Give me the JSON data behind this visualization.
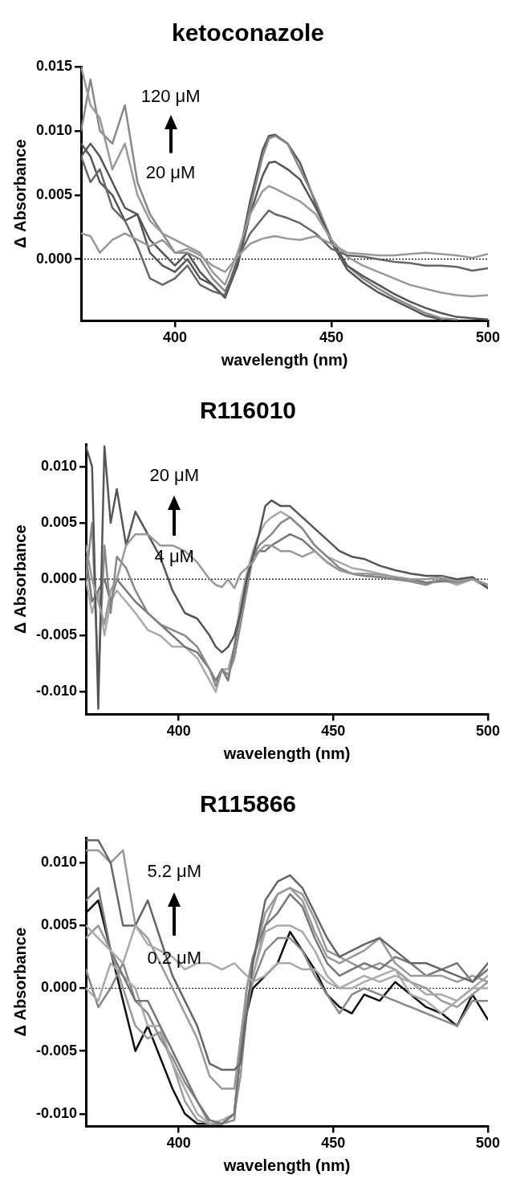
{
  "chart_data": [
    {
      "type": "line",
      "title": "ketoconazole",
      "xlabel": "wavelength (nm)",
      "ylabel": "Δ Absorbance",
      "annotations": [
        "120 μM",
        "20 μM"
      ],
      "xlim": [
        370,
        500
      ],
      "xticks": [
        400,
        450,
        500
      ],
      "ylim": [
        -0.0048,
        0.015
      ],
      "yticks": [
        {
          "value": 0,
          "label": "0.000"
        },
        0.005,
        {
          "value": 0.01,
          "label": "0.010"
        },
        0.015
      ],
      "grid": false,
      "legend": false,
      "marker": "none",
      "line_style": "solid",
      "ref_lines": [
        {
          "axis": "y",
          "value": 0,
          "line_style": "dotted",
          "color": "#000000"
        }
      ],
      "x": [
        370,
        373,
        376,
        380,
        384,
        388,
        392,
        396,
        400,
        404,
        408,
        412,
        416,
        420,
        424,
        428,
        430,
        432,
        436,
        440,
        445,
        450,
        455,
        460,
        465,
        470,
        475,
        480,
        485,
        490,
        495,
        500
      ],
      "series": [
        {
          "color": "#999999",
          "values": [
            0.002,
            0.0018,
            0.0005,
            0.0015,
            0.002,
            0.0015,
            0.001,
            0.0015,
            0.0005,
            0.0008,
            0.0003,
            -0.0005,
            -0.001,
            0.0002,
            0.0012,
            0.0016,
            0.0017,
            0.0018,
            0.0016,
            0.0015,
            0.0018,
            0.0012,
            0.0005,
            0.0004,
            0.0003,
            0.0003,
            0.0004,
            0.0005,
            0.0004,
            0.0003,
            0.0001,
            0.0004
          ]
        },
        {
          "color": "#666666",
          "values": [
            0.008,
            0.006,
            0.007,
            0.004,
            0.003,
            0.001,
            -0.0015,
            -0.002,
            -0.0015,
            -0.0005,
            -0.002,
            -0.0025,
            -0.0028,
            0,
            0.002,
            0.0032,
            0.0038,
            0.0035,
            0.0032,
            0.0028,
            0.002,
            0.0008,
            0.0003,
            0.0002,
            0,
            -0.0002,
            -0.0003,
            -0.0005,
            -0.0005,
            -0.0006,
            -0.0009,
            -0.0007
          ]
        },
        {
          "color": "#999999",
          "values": [
            0.015,
            0.012,
            0.011,
            0.007,
            0.009,
            0.005,
            0.003,
            0.002,
            0.0015,
            0.001,
            0.0005,
            -0.001,
            -0.002,
            0.0005,
            0.0035,
            0.0053,
            0.0057,
            0.0055,
            0.005,
            0.0045,
            0.0035,
            0.0015,
            0.0002,
            -0.0005,
            -0.001,
            -0.0015,
            -0.002,
            -0.0023,
            -0.0026,
            -0.0028,
            -0.0029,
            -0.0028
          ]
        },
        {
          "color": "#555555",
          "values": [
            0.009,
            0.008,
            0.006,
            0.005,
            0.003,
            0.0035,
            0.0005,
            -0.0005,
            -0.001,
            0,
            -0.0015,
            -0.002,
            -0.003,
            -0.0005,
            0.0035,
            0.0065,
            0.0075,
            0.0076,
            0.007,
            0.0062,
            0.004,
            0.0015,
            -0.0005,
            -0.0013,
            -0.002,
            -0.0027,
            -0.0033,
            -0.0038,
            -0.0042,
            -0.0045,
            -0.0046,
            -0.0047
          ]
        },
        {
          "color": "#888888",
          "values": [
            0.01,
            0.014,
            0.01,
            0.009,
            0.012,
            0.006,
            0.0035,
            0.002,
            0.0005,
            0.0005,
            0,
            -0.0015,
            -0.0025,
            -0.0005,
            0.004,
            0.008,
            0.0094,
            0.0096,
            0.009,
            0.007,
            0.0045,
            0.0015,
            -0.0005,
            -0.0015,
            -0.0023,
            -0.003,
            -0.0036,
            -0.0042,
            -0.0046,
            -0.0047,
            null,
            null
          ]
        },
        {
          "color": "#555555",
          "values": [
            0.008,
            0.009,
            0.008,
            0.006,
            0.004,
            0.0035,
            0.0015,
            0.0005,
            -0.0005,
            0.0005,
            -0.001,
            -0.002,
            -0.003,
            -0.0003,
            0.0045,
            0.0085,
            0.0096,
            0.0097,
            0.009,
            0.0075,
            0.0043,
            0.0013,
            -0.0008,
            -0.0018,
            -0.0026,
            -0.0032,
            -0.0038,
            -0.0044,
            -0.0047,
            null,
            null,
            null
          ]
        }
      ]
    },
    {
      "type": "line",
      "title": "R116010",
      "xlabel": "wavelength (nm)",
      "ylabel": "Δ Absorbance",
      "annotations": [
        "20 μM",
        "4 μM"
      ],
      "xlim": [
        370,
        500
      ],
      "xticks": [
        400,
        450,
        500
      ],
      "ylim": [
        -0.012,
        0.012
      ],
      "yticks": [
        {
          "value": -0.01,
          "label": "-0.010"
        },
        -0.005,
        {
          "value": 0,
          "label": "0.000"
        },
        0.005,
        {
          "value": 0.01,
          "label": "0.010"
        }
      ],
      "grid": false,
      "legend": false,
      "marker": "none",
      "line_style": "solid",
      "ref_lines": [
        {
          "axis": "y",
          "value": 0,
          "line_style": "dotted",
          "color": "#000000"
        }
      ],
      "x": [
        370,
        372,
        374,
        376,
        378,
        380,
        383,
        386,
        390,
        394,
        398,
        402,
        406,
        410,
        412,
        414,
        416,
        418,
        420,
        422,
        424,
        426,
        428,
        430,
        433,
        436,
        440,
        444,
        448,
        452,
        456,
        460,
        465,
        470,
        475,
        480,
        485,
        490,
        495,
        500
      ],
      "series": [
        {
          "color": "#999999",
          "values": [
            0.003,
            0,
            -0.002,
            -0.004,
            -0.001,
            0,
            0.003,
            0.004,
            0.004,
            0.003,
            0.003,
            0.0025,
            0.0015,
            0,
            -0.0005,
            -0.0007,
            0,
            -0.0008,
            0.0005,
            0.001,
            0.0015,
            0.0025,
            0.003,
            0.003,
            0.0025,
            0.0025,
            0.002,
            0.0025,
            0.0015,
            0.0008,
            0.0005,
            0.0005,
            0.0004,
            0.0002,
            0,
            0,
            0.0002,
            -0.0002,
            0,
            -0.0005
          ]
        },
        {
          "color": "#555555",
          "values": [
            0.0118,
            0.01,
            -0.0115,
            0.0118,
            0.005,
            0.008,
            0.003,
            0.006,
            0.004,
            0.002,
            -0.001,
            -0.003,
            -0.0035,
            -0.005,
            -0.006,
            -0.0065,
            -0.006,
            -0.005,
            -0.003,
            0,
            0.002,
            0.004,
            0.0065,
            0.007,
            0.0065,
            0.0065,
            0.0055,
            0.0045,
            0.0035,
            0.0025,
            0.002,
            0.0018,
            0.0012,
            0.0008,
            0.0005,
            0.0003,
            0.0003,
            0,
            0.0002,
            -0.0008
          ]
        },
        {
          "color": "#888888",
          "values": [
            0,
            0.005,
            -0.009,
            0.003,
            -0.003,
            0.002,
            0.001,
            -0.001,
            -0.003,
            -0.004,
            -0.0045,
            -0.005,
            -0.006,
            -0.008,
            -0.0095,
            -0.008,
            -0.0085,
            -0.007,
            -0.004,
            -0.001,
            0.002,
            0.003,
            0.0035,
            0.004,
            0.005,
            0.0055,
            0.0045,
            0.003,
            0.002,
            0.001,
            0.0005,
            0.0003,
            0.0002,
            0,
            -0.0002,
            -0.0005,
            0,
            -0.0003,
            0,
            -0.0005
          ]
        },
        {
          "color": "#777777",
          "values": [
            0.002,
            -0.002,
            -0.001,
            0,
            -0.002,
            0,
            -0.001,
            -0.002,
            -0.003,
            -0.004,
            -0.005,
            -0.006,
            -0.0065,
            -0.008,
            -0.009,
            -0.008,
            -0.009,
            -0.006,
            -0.003,
            0,
            0.002,
            0.0025,
            0.0025,
            0.003,
            0.0035,
            0.004,
            0.0035,
            0.0025,
            0.0015,
            0.0008,
            0.0005,
            0.0003,
            0.0002,
            0,
            0,
            -0.0003,
            -0.0002,
            -0.0002,
            0,
            -0.0005
          ]
        },
        {
          "color": "#aaaaaa",
          "values": [
            0,
            -0.003,
            -0.001,
            -0.005,
            -0.002,
            -0.001,
            -0.002,
            -0.003,
            -0.0045,
            -0.005,
            -0.006,
            -0.006,
            -0.007,
            -0.009,
            -0.01,
            -0.008,
            -0.008,
            -0.006,
            -0.002,
            0.0005,
            0.0025,
            0.004,
            0.005,
            0.0055,
            0.006,
            0.0055,
            0.0045,
            0.003,
            0.002,
            0.0015,
            0.001,
            0.0008,
            0.0005,
            0.0002,
            0,
            -0.0003,
            0,
            -0.0005,
            0,
            -0.0008
          ]
        }
      ]
    },
    {
      "type": "line",
      "title": "R115866",
      "xlabel": "wavelength (nm)",
      "ylabel": "Δ Absorbance",
      "annotations": [
        "5.2 μM",
        "0.2 μM"
      ],
      "xlim": [
        370,
        500
      ],
      "xticks": [
        400,
        450,
        500
      ],
      "ylim": [
        -0.011,
        0.012
      ],
      "yticks": [
        {
          "value": -0.01,
          "label": "-0.010"
        },
        -0.005,
        {
          "value": 0,
          "label": "0.000"
        },
        0.005,
        {
          "value": 0.01,
          "label": "0.010"
        }
      ],
      "grid": false,
      "legend": false,
      "marker": "none",
      "line_style": "solid",
      "ref_lines": [
        {
          "axis": "y",
          "value": 0,
          "line_style": "dotted",
          "color": "#000000"
        }
      ],
      "x": [
        370,
        374,
        378,
        382,
        386,
        390,
        394,
        398,
        402,
        406,
        410,
        414,
        418,
        420,
        422,
        424,
        428,
        432,
        436,
        440,
        444,
        448,
        452,
        456,
        460,
        465,
        470,
        475,
        480,
        485,
        490,
        495,
        500
      ],
      "series": [
        {
          "color": "#aaaaaa",
          "values": [
            0.005,
            0.004,
            0.003,
            0.002,
            0.005,
            0.0035,
            0.003,
            0.0025,
            0.0015,
            0.002,
            0.002,
            0.0015,
            0.002,
            0.0015,
            0.001,
            0.0005,
            0.001,
            0.002,
            0.002,
            0.0015,
            0.0015,
            0.0005,
            0,
            0.0005,
            0.001,
            0.0005,
            0.001,
            0.0005,
            -0.0005,
            -0.0005,
            -0.001,
            0,
            0
          ]
        },
        {
          "color": "#666666",
          "values": [
            0.0118,
            0.0118,
            0.01,
            0.005,
            0.005,
            0.007,
            0.004,
            0.001,
            -0.001,
            -0.003,
            -0.006,
            -0.0065,
            -0.0065,
            -0.006,
            -0.002,
            0.002,
            0.007,
            0.0085,
            0.009,
            0.008,
            0.006,
            0.004,
            0.0025,
            0.003,
            0.0035,
            0.004,
            0.003,
            0.002,
            0.002,
            0.0015,
            0.001,
            0.0005,
            0.002
          ]
        },
        {
          "color": "#999999",
          "values": [
            0.011,
            0.011,
            0.01,
            0.011,
            0.005,
            0.004,
            0.002,
            0,
            -0.002,
            -0.004,
            -0.007,
            -0.008,
            -0.008,
            -0.004,
            0,
            0.002,
            0.006,
            0.0075,
            0.008,
            0.007,
            0.0045,
            0.0025,
            0.002,
            0.0025,
            0.003,
            0.004,
            0.002,
            0.001,
            0.001,
            0.001,
            0.0005,
            0.001,
            0.0005
          ]
        },
        {
          "color": "#777777",
          "values": [
            0.007,
            0.008,
            0.003,
            0.001,
            -0.001,
            -0.001,
            -0.003,
            -0.005,
            -0.007,
            -0.009,
            -0.0105,
            -0.0108,
            -0.01,
            -0.005,
            0,
            0.0025,
            0.005,
            0.006,
            0.0075,
            0.0065,
            0.004,
            0.002,
            0.001,
            0.0015,
            0.002,
            0.0015,
            0.0025,
            0.002,
            0.001,
            0.0015,
            0.002,
            0.0005,
            0.0015
          ]
        },
        {
          "color": "#aaaaaa",
          "values": [
            0,
            -0.001,
            0.002,
            0.001,
            0,
            -0.003,
            -0.003,
            -0.006,
            -0.008,
            -0.01,
            -0.0108,
            -0.0105,
            -0.01,
            -0.004,
            -0.001,
            0.001,
            0.0045,
            0.005,
            0.005,
            0.0045,
            0.003,
            0.001,
            0,
            0,
            0.0005,
            0.001,
            0.0015,
            -0.0005,
            -0.001,
            -0.002,
            -0.001,
            0,
            0.001
          ]
        },
        {
          "color": "#888888",
          "values": [
            0.0015,
            -0.0015,
            0,
            0.002,
            -0.001,
            -0.002,
            -0.004,
            -0.0055,
            -0.0075,
            -0.009,
            -0.0108,
            -0.0108,
            -0.0105,
            -0.005,
            -0.001,
            0.0005,
            0.003,
            0.004,
            0.004,
            0.003,
            0.001,
            -0.0005,
            -0.002,
            -0.0005,
            0,
            -0.0005,
            -0.001,
            -0.0015,
            -0.002,
            -0.0025,
            -0.003,
            -0.001,
            -0.001
          ]
        },
        {
          "color": "#999999",
          "values": [
            0.004,
            0.005,
            0.003,
            0,
            -0.003,
            -0.004,
            -0.0035,
            -0.006,
            -0.009,
            -0.0105,
            -0.0108,
            -0.0108,
            -0.01,
            -0.007,
            -0.002,
            0.001,
            0.005,
            0.0075,
            0.008,
            0.0075,
            0.0055,
            0.003,
            0.0025,
            0.002,
            0.0015,
            0.002,
            0.0015,
            0.0005,
            0,
            -0.001,
            -0.0015,
            -0.0005,
            0.0005
          ]
        },
        {
          "color": "#111111",
          "values": [
            0.006,
            0.007,
            0.003,
            -0.001,
            -0.005,
            -0.003,
            -0.0055,
            -0.008,
            -0.01,
            -0.0108,
            -0.0108,
            -0.0108,
            -0.01,
            -0.005,
            -0.002,
            0,
            0.001,
            0.002,
            0.0045,
            0.003,
            0.0015,
            -0.0005,
            -0.0015,
            -0.002,
            -0.0005,
            -0.001,
            0.0005,
            -0.0005,
            -0.0015,
            -0.002,
            -0.003,
            -0.0005,
            -0.0025
          ]
        }
      ]
    }
  ]
}
